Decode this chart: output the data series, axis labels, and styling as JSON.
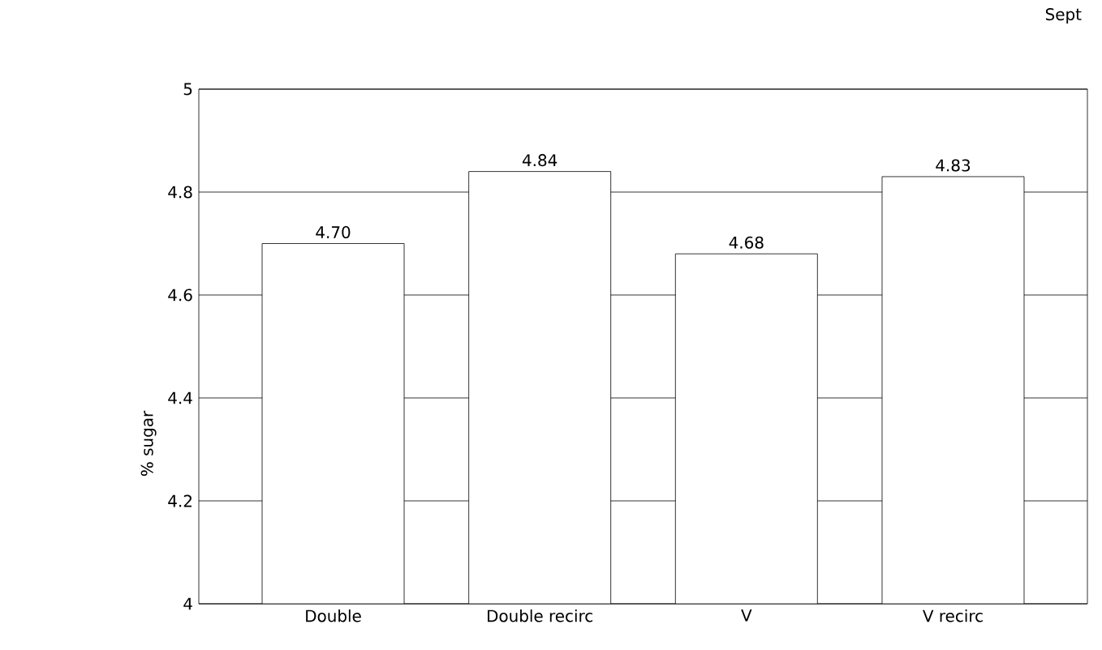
{
  "chart_data": {
    "type": "bar",
    "title": "Sept",
    "ylabel": "% sugar",
    "categories": [
      "Double",
      "Double recirc",
      "V",
      "V recirc"
    ],
    "values": [
      4.7,
      4.84,
      4.68,
      4.83
    ],
    "value_labels": [
      "4.70",
      "4.84",
      "4.68",
      "4.83"
    ],
    "color": "#ffffff",
    "ylim": [
      4,
      5
    ],
    "yticks": [
      4,
      4.2,
      4.4,
      4.6,
      4.8,
      5
    ],
    "grid": "y"
  }
}
